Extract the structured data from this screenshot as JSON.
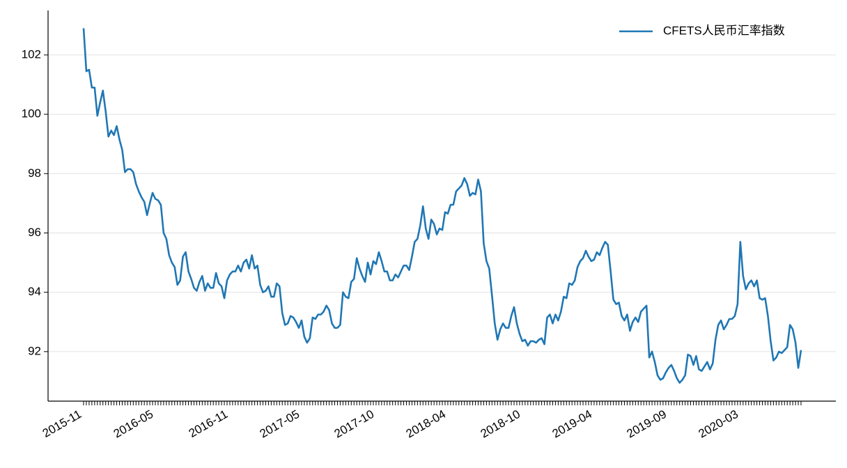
{
  "chart_data": {
    "type": "line",
    "categories": [
      "2015-11",
      null,
      null,
      null,
      null,
      null,
      null,
      null,
      null,
      null,
      null,
      null,
      null,
      null,
      null,
      null,
      null,
      null,
      null,
      null,
      null,
      null,
      null,
      null,
      null,
      null,
      "2016-05",
      null,
      null,
      null,
      null,
      null,
      null,
      null,
      null,
      null,
      null,
      null,
      null,
      null,
      null,
      null,
      null,
      null,
      null,
      null,
      null,
      null,
      null,
      null,
      null,
      null,
      null,
      "2016-11",
      null,
      null,
      null,
      null,
      null,
      null,
      null,
      null,
      null,
      null,
      null,
      null,
      null,
      null,
      null,
      null,
      null,
      null,
      null,
      null,
      null,
      null,
      null,
      null,
      null,
      "2017-05",
      null,
      null,
      null,
      null,
      null,
      null,
      null,
      null,
      null,
      null,
      null,
      null,
      null,
      null,
      null,
      null,
      null,
      null,
      null,
      null,
      null,
      null,
      null,
      null,
      null,
      null,
      "2017-10",
      null,
      null,
      null,
      null,
      null,
      null,
      null,
      null,
      null,
      null,
      null,
      null,
      null,
      null,
      null,
      null,
      null,
      null,
      null,
      null,
      null,
      null,
      null,
      null,
      null,
      "2018-04",
      null,
      null,
      null,
      null,
      null,
      null,
      null,
      null,
      null,
      null,
      null,
      null,
      null,
      null,
      null,
      null,
      null,
      null,
      null,
      null,
      null,
      null,
      null,
      null,
      null,
      null,
      "2018-10",
      null,
      null,
      null,
      null,
      null,
      null,
      null,
      null,
      null,
      null,
      null,
      null,
      null,
      null,
      null,
      null,
      null,
      null,
      null,
      null,
      null,
      null,
      null,
      null,
      null,
      "2019-04",
      null,
      null,
      null,
      null,
      null,
      null,
      null,
      null,
      null,
      null,
      null,
      null,
      null,
      null,
      null,
      null,
      null,
      null,
      null,
      null,
      null,
      null,
      null,
      null,
      null,
      null,
      "2019-09",
      null,
      null,
      null,
      null,
      null,
      null,
      null,
      null,
      null,
      null,
      null,
      null,
      null,
      null,
      null,
      null,
      null,
      null,
      null,
      null,
      null,
      null,
      null,
      null,
      null,
      "2020-03",
      null,
      null,
      null,
      null,
      null,
      null,
      null,
      null,
      null,
      null,
      null,
      null,
      null,
      null,
      null,
      null,
      null,
      null,
      null,
      null,
      null,
      null
    ],
    "series": [
      {
        "name": "CFETS人民币汇率指数",
        "color": "#1f77b4",
        "values": [
          102.9,
          101.45,
          101.5,
          100.9,
          100.9,
          99.95,
          100.4,
          100.8,
          100.1,
          99.25,
          99.45,
          99.3,
          99.6,
          99.15,
          98.8,
          98.05,
          98.15,
          98.15,
          98.05,
          97.65,
          97.4,
          97.2,
          97.05,
          96.6,
          97.0,
          97.35,
          97.15,
          97.1,
          96.95,
          96.0,
          95.8,
          95.25,
          95.0,
          94.85,
          94.25,
          94.4,
          95.2,
          95.35,
          94.7,
          94.45,
          94.15,
          94.05,
          94.35,
          94.55,
          94.05,
          94.3,
          94.15,
          94.15,
          94.65,
          94.3,
          94.2,
          93.8,
          94.4,
          94.6,
          94.7,
          94.7,
          94.9,
          94.7,
          95.0,
          95.1,
          94.8,
          95.25,
          94.8,
          94.9,
          94.25,
          94.0,
          94.05,
          94.2,
          93.85,
          93.85,
          94.3,
          94.2,
          93.3,
          92.9,
          92.95,
          93.2,
          93.15,
          93.0,
          92.8,
          93.05,
          92.5,
          92.3,
          92.45,
          93.15,
          93.1,
          93.25,
          93.25,
          93.35,
          93.55,
          93.4,
          92.95,
          92.8,
          92.8,
          92.9,
          94.0,
          93.85,
          93.8,
          94.35,
          94.45,
          95.15,
          94.8,
          94.55,
          94.35,
          95.0,
          94.6,
          95.05,
          94.95,
          95.35,
          95.05,
          94.7,
          94.7,
          94.4,
          94.4,
          94.6,
          94.5,
          94.7,
          94.9,
          94.9,
          94.75,
          95.2,
          95.7,
          95.8,
          96.25,
          96.9,
          96.15,
          95.8,
          96.45,
          96.3,
          95.95,
          96.15,
          96.1,
          96.7,
          96.65,
          96.95,
          96.95,
          97.4,
          97.5,
          97.6,
          97.85,
          97.65,
          97.25,
          97.35,
          97.3,
          97.8,
          97.4,
          95.65,
          95.05,
          94.8,
          93.9,
          92.95,
          92.4,
          92.75,
          92.95,
          92.8,
          92.8,
          93.2,
          93.5,
          92.95,
          92.6,
          92.35,
          92.4,
          92.2,
          92.35,
          92.35,
          92.3,
          92.4,
          92.45,
          92.25,
          93.15,
          93.25,
          92.95,
          93.25,
          93.05,
          93.35,
          93.85,
          93.8,
          94.3,
          94.25,
          94.4,
          94.85,
          95.05,
          95.15,
          95.4,
          95.2,
          95.05,
          95.1,
          95.35,
          95.25,
          95.5,
          95.7,
          95.6,
          94.7,
          93.75,
          93.6,
          93.65,
          93.2,
          93.05,
          93.25,
          92.7,
          93.0,
          93.15,
          93.0,
          93.35,
          93.45,
          93.55,
          91.8,
          92.0,
          91.65,
          91.2,
          91.05,
          91.1,
          91.3,
          91.45,
          91.55,
          91.35,
          91.1,
          90.95,
          91.05,
          91.2,
          91.9,
          91.85,
          91.55,
          91.85,
          91.4,
          91.35,
          91.5,
          91.65,
          91.4,
          91.6,
          92.4,
          92.9,
          93.05,
          92.75,
          92.9,
          93.1,
          93.1,
          93.2,
          93.6,
          95.7,
          94.55,
          94.1,
          94.3,
          94.4,
          94.2,
          94.4,
          93.8,
          93.75,
          93.8,
          93.2,
          92.35,
          91.7,
          91.8,
          92.0,
          91.95,
          92.05,
          92.15,
          92.9,
          92.75,
          92.3,
          91.45,
          92.05
        ]
      }
    ],
    "ylim": [
      90.33,
      103.5
    ],
    "yticks": [
      92,
      94,
      96,
      98,
      100,
      102
    ],
    "grid": true,
    "legend": "upper right"
  }
}
